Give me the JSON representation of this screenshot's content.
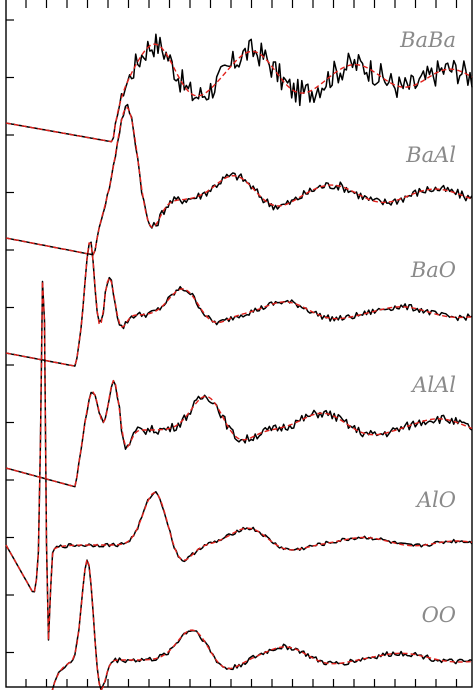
{
  "chart_data": {
    "type": "line",
    "title": "",
    "xlabel": "",
    "ylabel": "",
    "xlim": [
      0,
      10
    ],
    "legend": "none",
    "grid": false,
    "colors": {
      "simulation": "#000000",
      "model": "#e0211c"
    },
    "styles": {
      "simulation": "solid",
      "model": "dashed"
    },
    "panels": [
      {
        "label": "BaBa",
        "offset": 1.0,
        "start": 0.0,
        "start_y": 0.0,
        "onset": 2.3,
        "onset_y": -0.5,
        "peaks": [
          [
            3.2,
            1.1,
            0.38
          ],
          [
            5.3,
            0.9,
            0.45
          ],
          [
            7.5,
            0.55,
            0.5
          ],
          [
            9.5,
            0.45,
            0.5
          ]
        ],
        "noise_sim": 0.35,
        "noise_fit": 0.0
      },
      {
        "label": "BaAl",
        "offset": 1.0,
        "start": 0.0,
        "start_y": 0.0,
        "onset": 1.9,
        "onset_y": -0.45,
        "peaks": [
          [
            2.6,
            2.5,
            0.22
          ],
          [
            4.9,
            0.65,
            0.4
          ],
          [
            7.0,
            0.4,
            0.5
          ],
          [
            9.2,
            0.3,
            0.55
          ]
        ],
        "noise_sim": 0.12,
        "noise_fit": 0.0
      },
      {
        "label": "BaO",
        "offset": 1.0,
        "start": 0.0,
        "start_y": 0.0,
        "onset": 1.5,
        "onset_y": -0.35,
        "peaks": [
          [
            1.8,
            2.2,
            0.1
          ],
          [
            2.2,
            1.1,
            0.12
          ],
          [
            3.8,
            0.7,
            0.3
          ],
          [
            6.0,
            0.35,
            0.45
          ],
          [
            8.5,
            0.22,
            0.5
          ]
        ],
        "noise_sim": 0.08,
        "noise_fit": 0.0
      },
      {
        "label": "AlAl",
        "offset": 1.0,
        "start": 0.0,
        "start_y": 0.0,
        "onset": 1.5,
        "onset_y": -0.5,
        "peaks": [
          [
            1.85,
            1.2,
            0.14
          ],
          [
            2.3,
            1.55,
            0.12
          ],
          [
            4.3,
            0.9,
            0.32
          ],
          [
            6.8,
            0.45,
            0.45
          ],
          [
            9.3,
            0.3,
            0.5
          ]
        ],
        "noise_sim": 0.12,
        "noise_fit": 0.0
      },
      {
        "label": "AlO",
        "offset": 1.0,
        "start": 0.0,
        "start_y": 1.0,
        "onset": 0.6,
        "onset_y": -0.3,
        "peaks": [
          [
            0.8,
            8.0,
            0.045
          ],
          [
            3.2,
            1.4,
            0.25
          ],
          [
            5.2,
            0.45,
            0.38
          ],
          [
            7.7,
            0.2,
            0.5
          ],
          [
            9.6,
            0.12,
            0.5
          ]
        ],
        "noise_sim": 0.05,
        "noise_fit": 0.0
      },
      {
        "label": "OO",
        "offset": 1.0,
        "start": 0.0,
        "start_y": 0.0,
        "onset": 0.9,
        "onset_y": -0.4,
        "peaks": [
          [
            1.75,
            2.7,
            0.12
          ],
          [
            4.0,
            0.8,
            0.32
          ],
          [
            6.0,
            0.35,
            0.42
          ],
          [
            8.5,
            0.18,
            0.5
          ]
        ],
        "noise_sim": 0.07,
        "noise_fit": 0.0
      }
    ]
  }
}
